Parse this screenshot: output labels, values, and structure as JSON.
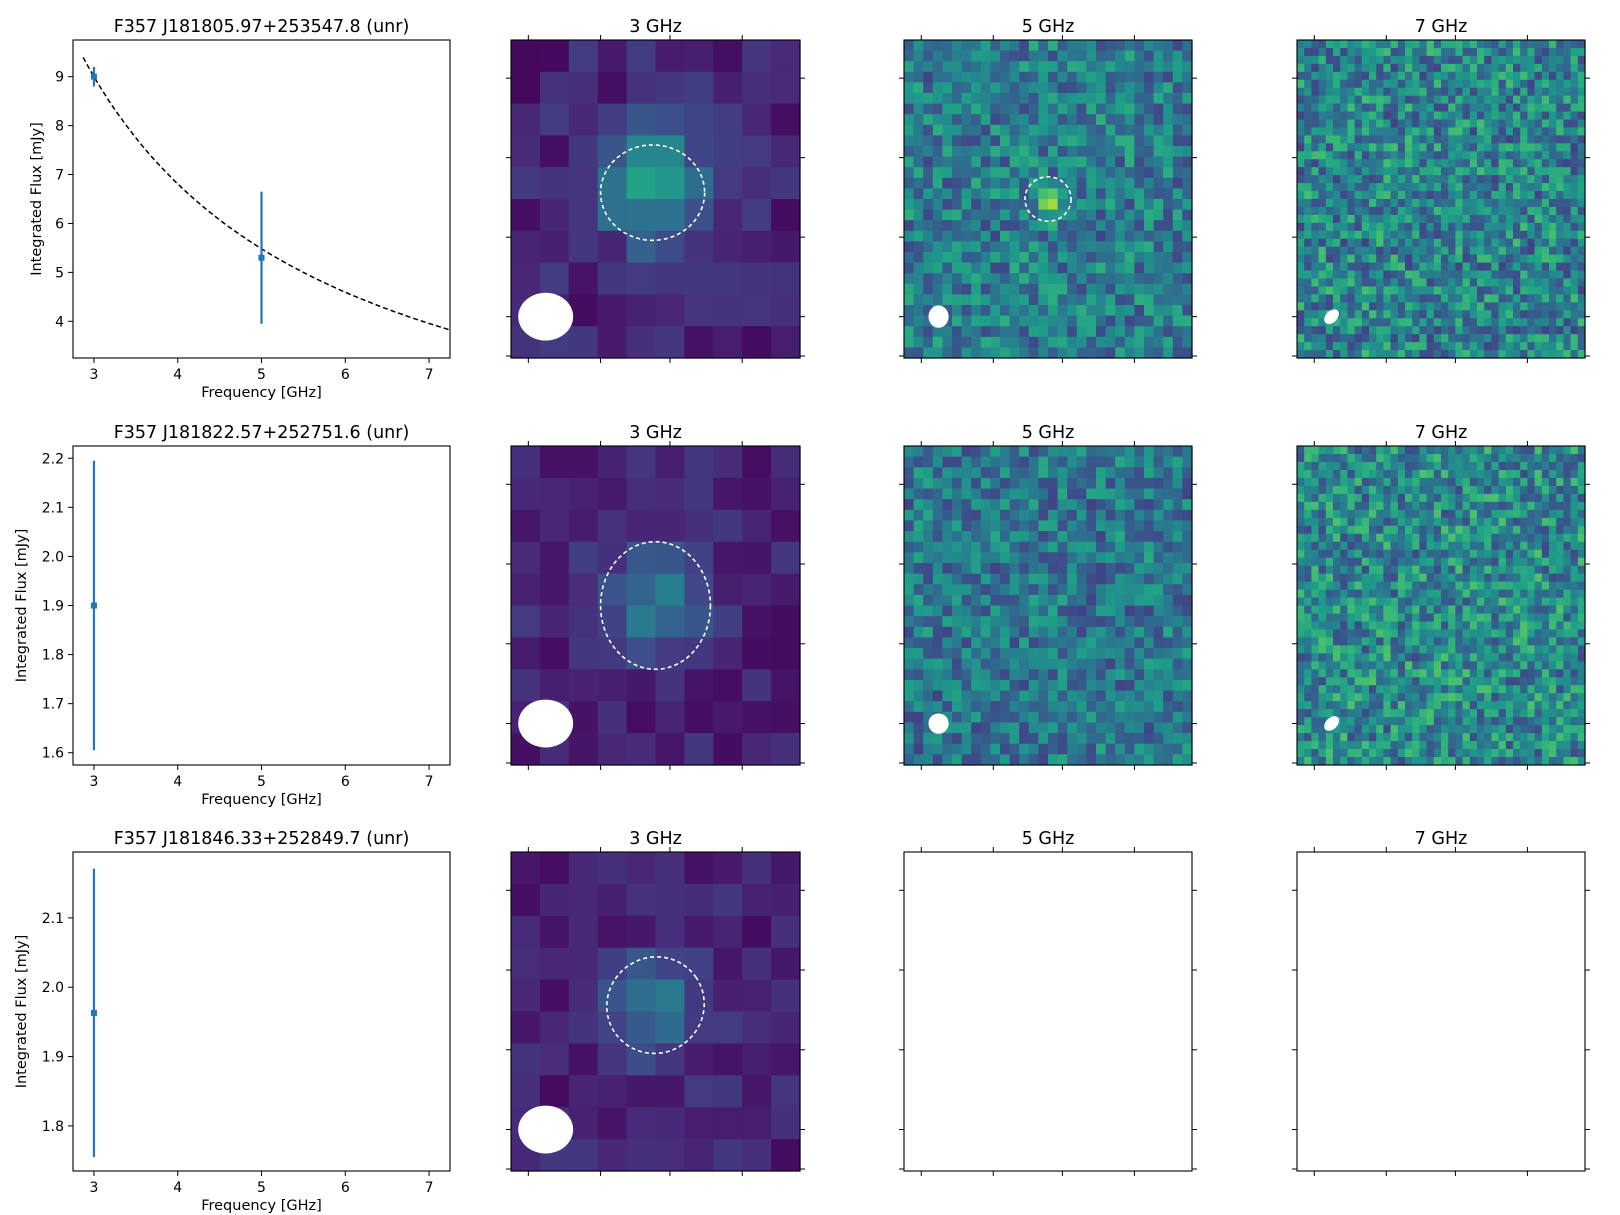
{
  "figure_title": "",
  "chart_data": [
    {
      "type": "scatter",
      "title": "F357 J181805.97+253547.8 (unr)",
      "xlabel": "Frequency [GHz]",
      "ylabel": "Integrated Flux [mJy]",
      "xlim": [
        2.75,
        7.25
      ],
      "ylim": [
        3.25,
        9.75
      ],
      "xticks": [
        3,
        4,
        5,
        6,
        7
      ],
      "yticks": [
        4,
        5,
        6,
        7,
        8,
        9
      ],
      "ytick_decimals": 0,
      "points": [
        {
          "x": 3,
          "y": 9.0,
          "err": 0.2
        },
        {
          "x": 5,
          "y": 5.3,
          "err": 1.35
        }
      ],
      "fit": {
        "type": "power-law",
        "style": "dashed",
        "color": "#000000",
        "amplitude_at_3ghz": 9.0,
        "index": -0.97,
        "x_range": [
          2.87,
          7.25
        ]
      },
      "marker_color": "#1f77b4",
      "grid": false
    },
    {
      "type": "heatmap",
      "title": "3 GHz",
      "colormap": "viridis",
      "pixels_per_side": 10,
      "noise_level": 0.16,
      "source": {
        "cx": 0.49,
        "cy": 0.45,
        "sigma": 0.13,
        "peak": 0.48
      },
      "aperture": {
        "cx": 0.49,
        "cy": 0.48,
        "rx": 0.18,
        "ry": 0.15,
        "angle": 0
      },
      "beam": {
        "cx": 0.12,
        "cy": 0.87,
        "rx": 0.095,
        "ry": 0.075,
        "angle": 0
      },
      "empty": false
    },
    {
      "type": "heatmap",
      "title": "5 GHz",
      "colormap": "viridis",
      "pixels_per_side": 30,
      "noise_level": 0.42,
      "noise_center": 0.42,
      "source": {
        "cx": 0.5,
        "cy": 0.5,
        "sigma": 0.035,
        "peak": 0.32
      },
      "aperture": {
        "cx": 0.5,
        "cy": 0.5,
        "rx": 0.08,
        "ry": 0.07,
        "angle": 0
      },
      "beam": {
        "cx": 0.12,
        "cy": 0.87,
        "rx": 0.035,
        "ry": 0.035,
        "angle": 0
      },
      "empty": false
    },
    {
      "type": "heatmap",
      "title": "7 GHz",
      "colormap": "viridis",
      "pixels_per_side": 40,
      "noise_level": 0.5,
      "noise_center": 0.45,
      "beam": {
        "cx": 0.12,
        "cy": 0.87,
        "rx": 0.03,
        "ry": 0.018,
        "angle": -45
      },
      "empty": false
    },
    {
      "type": "scatter",
      "title": "F357 J181822.57+252751.6 (unr)",
      "xlabel": "Frequency [GHz]",
      "ylabel": "Integrated Flux [mJy]",
      "xlim": [
        2.75,
        7.25
      ],
      "ylim": [
        1.575,
        2.225
      ],
      "xticks": [
        3,
        4,
        5,
        6,
        7
      ],
      "yticks": [
        1.6,
        1.7,
        1.8,
        1.9,
        2.0,
        2.1,
        2.2
      ],
      "ytick_decimals": 1,
      "points": [
        {
          "x": 3,
          "y": 1.9,
          "err": 0.295
        }
      ],
      "marker_color": "#1f77b4",
      "grid": false
    },
    {
      "type": "heatmap",
      "title": "3 GHz",
      "colormap": "viridis",
      "pixels_per_side": 10,
      "noise_level": 0.14,
      "source": {
        "cx": 0.5,
        "cy": 0.5,
        "sigma": 0.12,
        "peak": 0.32
      },
      "aperture": {
        "cx": 0.5,
        "cy": 0.5,
        "rx": 0.19,
        "ry": 0.2,
        "angle": 0
      },
      "beam": {
        "cx": 0.12,
        "cy": 0.87,
        "rx": 0.095,
        "ry": 0.075,
        "angle": 0
      },
      "empty": false
    },
    {
      "type": "heatmap",
      "title": "5 GHz",
      "colormap": "viridis",
      "pixels_per_side": 30,
      "noise_level": 0.4,
      "noise_center": 0.4,
      "beam": {
        "cx": 0.12,
        "cy": 0.87,
        "rx": 0.035,
        "ry": 0.032,
        "angle": 0
      },
      "empty": false
    },
    {
      "type": "heatmap",
      "title": "7 GHz",
      "colormap": "viridis",
      "pixels_per_side": 40,
      "noise_level": 0.5,
      "noise_center": 0.47,
      "beam": {
        "cx": 0.12,
        "cy": 0.87,
        "rx": 0.03,
        "ry": 0.018,
        "angle": -45
      },
      "empty": false
    },
    {
      "type": "scatter",
      "title": "F357 J181846.33+252849.7 (unr)",
      "xlabel": "Frequency [GHz]",
      "ylabel": "Integrated Flux [mJy]",
      "xlim": [
        2.75,
        7.25
      ],
      "ylim": [
        1.735,
        2.195
      ],
      "xticks": [
        3,
        4,
        5,
        6,
        7
      ],
      "yticks": [
        1.8,
        1.9,
        2.0,
        2.1
      ],
      "ytick_decimals": 1,
      "points": [
        {
          "x": 3,
          "y": 1.963,
          "err": 0.208
        }
      ],
      "marker_color": "#1f77b4",
      "grid": false
    },
    {
      "type": "heatmap",
      "title": "3 GHz",
      "colormap": "viridis",
      "pixels_per_side": 10,
      "noise_level": 0.14,
      "source": {
        "cx": 0.5,
        "cy": 0.48,
        "sigma": 0.11,
        "peak": 0.28
      },
      "aperture": {
        "cx": 0.5,
        "cy": 0.48,
        "rx": 0.17,
        "ry": 0.15,
        "angle": -35
      },
      "beam": {
        "cx": 0.12,
        "cy": 0.87,
        "rx": 0.095,
        "ry": 0.075,
        "angle": 0
      },
      "empty": false
    },
    {
      "type": "heatmap",
      "title": "5 GHz",
      "empty": true
    },
    {
      "type": "heatmap",
      "title": "7 GHz",
      "empty": true
    }
  ]
}
